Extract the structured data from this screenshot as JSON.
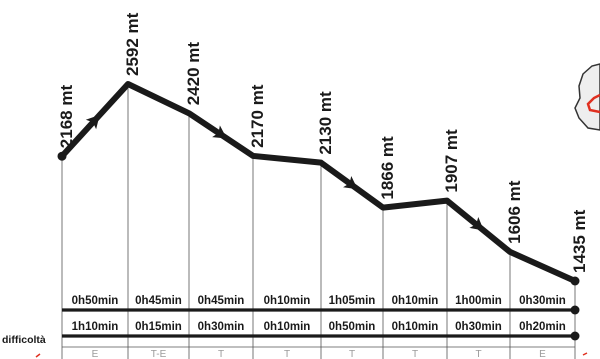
{
  "chart_data": {
    "type": "line",
    "points": [
      {
        "altitude": 2168,
        "label": "2168 mt"
      },
      {
        "altitude": 2592,
        "label": "2592 mt"
      },
      {
        "altitude": 2420,
        "label": "2420 mt"
      },
      {
        "altitude": 2170,
        "label": "2170 mt"
      },
      {
        "altitude": 2130,
        "label": "2130 mt"
      },
      {
        "altitude": 1866,
        "label": "1866 mt"
      },
      {
        "altitude": 1907,
        "label": "1907 mt"
      },
      {
        "altitude": 1606,
        "label": "1606 mt"
      },
      {
        "altitude": 1435,
        "label": "1435 mt"
      }
    ],
    "segments": [
      {
        "time_ascent": "0h50min",
        "time_descent": "1h10min",
        "difficulty": "E",
        "arrow": "forward"
      },
      {
        "time_ascent": "0h45min",
        "time_descent": "0h15min",
        "difficulty": "T-E",
        "arrow": "none"
      },
      {
        "time_ascent": "0h45min",
        "time_descent": "0h30min",
        "difficulty": "T",
        "arrow": "forward"
      },
      {
        "time_ascent": "0h10min",
        "time_descent": "0h10min",
        "difficulty": "T",
        "arrow": "none"
      },
      {
        "time_ascent": "1h05min",
        "time_descent": "0h50min",
        "difficulty": "T",
        "arrow": "forward"
      },
      {
        "time_ascent": "0h10min",
        "time_descent": "0h10min",
        "difficulty": "T",
        "arrow": "none"
      },
      {
        "time_ascent": "1h00min",
        "time_descent": "0h30min",
        "difficulty": "T",
        "arrow": "forward"
      },
      {
        "time_ascent": "0h30min",
        "time_descent": "0h20min",
        "difficulty": "E",
        "arrow": "none"
      }
    ],
    "difficulty_heading": "difficoltà",
    "ylim": [
      1400,
      2650
    ],
    "colors": {
      "line": "#1a1a1a",
      "grid": "#555555",
      "difficulty_text": "#9a9a9a",
      "map_fill": "#eeeeee",
      "map_route": "#e03020",
      "red_marks": "#e03020"
    }
  }
}
